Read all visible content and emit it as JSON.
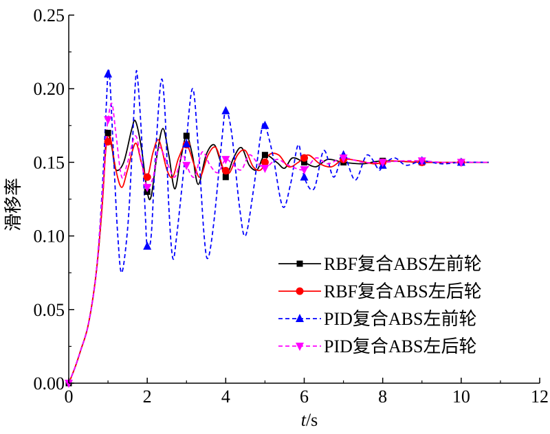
{
  "chart_data": {
    "type": "line",
    "xlabel": {
      "italic": "t",
      "rest": "/s"
    },
    "ylabel": "滑移率",
    "xlim": [
      0,
      12
    ],
    "ylim": [
      0,
      0.25
    ],
    "x_ticks": [
      "0",
      "2",
      "4",
      "6",
      "8",
      "10",
      "12"
    ],
    "y_ticks": [
      "0.00",
      "0.05",
      "0.10",
      "0.15",
      "0.20",
      "0.25"
    ],
    "grid": false,
    "legend_position": "bottom-right",
    "series": [
      {
        "name": "RBF复合ABS左前轮",
        "color": "#000000",
        "dash": "solid",
        "marker": "square",
        "marker_x": [
          0,
          1,
          2,
          3,
          4,
          5,
          6,
          7,
          8,
          9,
          10
        ],
        "points": [
          [
            0,
            0
          ],
          [
            0.15,
            0.01
          ],
          [
            0.3,
            0.022
          ],
          [
            0.5,
            0.04
          ],
          [
            0.7,
            0.075
          ],
          [
            0.85,
            0.12
          ],
          [
            0.95,
            0.165
          ],
          [
            1.0,
            0.17
          ],
          [
            1.1,
            0.16
          ],
          [
            1.2,
            0.145
          ],
          [
            1.4,
            0.15
          ],
          [
            1.6,
            0.172
          ],
          [
            1.7,
            0.178
          ],
          [
            1.85,
            0.16
          ],
          [
            2.0,
            0.13
          ],
          [
            2.1,
            0.127
          ],
          [
            2.25,
            0.155
          ],
          [
            2.4,
            0.173
          ],
          [
            2.55,
            0.155
          ],
          [
            2.7,
            0.132
          ],
          [
            2.85,
            0.152
          ],
          [
            3.0,
            0.168
          ],
          [
            3.15,
            0.155
          ],
          [
            3.3,
            0.135
          ],
          [
            3.5,
            0.155
          ],
          [
            3.7,
            0.162
          ],
          [
            3.85,
            0.152
          ],
          [
            4.0,
            0.14
          ],
          [
            4.2,
            0.153
          ],
          [
            4.4,
            0.16
          ],
          [
            4.6,
            0.148
          ],
          [
            4.8,
            0.145
          ],
          [
            5.0,
            0.155
          ],
          [
            5.3,
            0.15
          ],
          [
            5.5,
            0.146
          ],
          [
            5.7,
            0.153
          ],
          [
            6.0,
            0.15
          ],
          [
            6.3,
            0.147
          ],
          [
            6.6,
            0.152
          ],
          [
            7.0,
            0.15
          ],
          [
            7.5,
            0.149
          ],
          [
            8.0,
            0.151
          ],
          [
            9.0,
            0.15
          ],
          [
            10.0,
            0.15
          ],
          [
            10.7,
            0.15
          ]
        ]
      },
      {
        "name": "RBF复合ABS左后轮",
        "color": "#ff0000",
        "dash": "solid",
        "marker": "circle",
        "marker_x": [
          1,
          2,
          3,
          4,
          5,
          6,
          7,
          8,
          9,
          10
        ],
        "points": [
          [
            0,
            0
          ],
          [
            0.15,
            0.01
          ],
          [
            0.3,
            0.022
          ],
          [
            0.5,
            0.04
          ],
          [
            0.7,
            0.075
          ],
          [
            0.85,
            0.12
          ],
          [
            0.95,
            0.16
          ],
          [
            1.05,
            0.168
          ],
          [
            1.2,
            0.145
          ],
          [
            1.35,
            0.133
          ],
          [
            1.5,
            0.145
          ],
          [
            1.7,
            0.163
          ],
          [
            1.85,
            0.15
          ],
          [
            2.0,
            0.14
          ],
          [
            2.15,
            0.157
          ],
          [
            2.3,
            0.165
          ],
          [
            2.5,
            0.145
          ],
          [
            2.65,
            0.14
          ],
          [
            2.8,
            0.153
          ],
          [
            3.0,
            0.162
          ],
          [
            3.2,
            0.148
          ],
          [
            3.35,
            0.14
          ],
          [
            3.55,
            0.155
          ],
          [
            3.75,
            0.16
          ],
          [
            3.95,
            0.145
          ],
          [
            4.1,
            0.143
          ],
          [
            4.3,
            0.155
          ],
          [
            4.5,
            0.158
          ],
          [
            4.7,
            0.147
          ],
          [
            4.9,
            0.145
          ],
          [
            5.1,
            0.155
          ],
          [
            5.35,
            0.155
          ],
          [
            5.6,
            0.147
          ],
          [
            5.85,
            0.15
          ],
          [
            6.1,
            0.155
          ],
          [
            6.4,
            0.149
          ],
          [
            6.7,
            0.147
          ],
          [
            7.0,
            0.152
          ],
          [
            7.4,
            0.151
          ],
          [
            7.8,
            0.149
          ],
          [
            8.2,
            0.151
          ],
          [
            9.0,
            0.15
          ],
          [
            10.0,
            0.15
          ],
          [
            10.7,
            0.15
          ]
        ]
      },
      {
        "name": "PID复合ABS左前轮",
        "color": "#0000ff",
        "dash": "dashed",
        "marker": "triangle-up",
        "marker_x": [
          1,
          2,
          3,
          4,
          5,
          6,
          7,
          8,
          9,
          10
        ],
        "points": [
          [
            0,
            0
          ],
          [
            0.15,
            0.01
          ],
          [
            0.3,
            0.022
          ],
          [
            0.5,
            0.04
          ],
          [
            0.7,
            0.075
          ],
          [
            0.85,
            0.13
          ],
          [
            0.95,
            0.185
          ],
          [
            1.0,
            0.21
          ],
          [
            1.05,
            0.205
          ],
          [
            1.15,
            0.15
          ],
          [
            1.25,
            0.1
          ],
          [
            1.35,
            0.075
          ],
          [
            1.5,
            0.105
          ],
          [
            1.6,
            0.15
          ],
          [
            1.7,
            0.205
          ],
          [
            1.75,
            0.208
          ],
          [
            1.85,
            0.17
          ],
          [
            1.95,
            0.115
          ],
          [
            2.0,
            0.093
          ],
          [
            2.1,
            0.1
          ],
          [
            2.2,
            0.15
          ],
          [
            2.35,
            0.205
          ],
          [
            2.45,
            0.185
          ],
          [
            2.55,
            0.12
          ],
          [
            2.65,
            0.085
          ],
          [
            2.75,
            0.1
          ],
          [
            2.95,
            0.15
          ],
          [
            3.15,
            0.2
          ],
          [
            3.3,
            0.16
          ],
          [
            3.45,
            0.1
          ],
          [
            3.55,
            0.085
          ],
          [
            3.7,
            0.11
          ],
          [
            3.9,
            0.165
          ],
          [
            4.0,
            0.185
          ],
          [
            4.15,
            0.17
          ],
          [
            4.35,
            0.12
          ],
          [
            4.5,
            0.1
          ],
          [
            4.7,
            0.13
          ],
          [
            4.9,
            0.17
          ],
          [
            5.0,
            0.175
          ],
          [
            5.2,
            0.155
          ],
          [
            5.45,
            0.12
          ],
          [
            5.65,
            0.135
          ],
          [
            5.85,
            0.162
          ],
          [
            6.0,
            0.14
          ],
          [
            6.25,
            0.132
          ],
          [
            6.5,
            0.158
          ],
          [
            6.75,
            0.14
          ],
          [
            7.0,
            0.155
          ],
          [
            7.3,
            0.138
          ],
          [
            7.6,
            0.155
          ],
          [
            7.9,
            0.145
          ],
          [
            8.0,
            0.148
          ],
          [
            8.3,
            0.153
          ],
          [
            8.6,
            0.148
          ],
          [
            9.0,
            0.151
          ],
          [
            9.5,
            0.149
          ],
          [
            10.0,
            0.15
          ],
          [
            10.7,
            0.15
          ]
        ]
      },
      {
        "name": "PID复合ABS左后轮",
        "color": "#ff00ff",
        "dash": "dashed",
        "marker": "triangle-down",
        "marker_x": [
          0,
          1,
          2,
          3,
          4,
          5,
          6,
          7,
          8,
          9,
          10
        ],
        "points": [
          [
            0,
            0
          ],
          [
            0.15,
            0.01
          ],
          [
            0.3,
            0.022
          ],
          [
            0.5,
            0.04
          ],
          [
            0.7,
            0.075
          ],
          [
            0.85,
            0.125
          ],
          [
            0.95,
            0.165
          ],
          [
            1.0,
            0.179
          ],
          [
            1.1,
            0.19
          ],
          [
            1.2,
            0.17
          ],
          [
            1.35,
            0.14
          ],
          [
            1.5,
            0.15
          ],
          [
            1.7,
            0.168
          ],
          [
            1.85,
            0.15
          ],
          [
            2.0,
            0.133
          ],
          [
            2.15,
            0.14
          ],
          [
            2.3,
            0.16
          ],
          [
            2.5,
            0.15
          ],
          [
            2.7,
            0.14
          ],
          [
            2.9,
            0.155
          ],
          [
            3.0,
            0.148
          ],
          [
            3.2,
            0.14
          ],
          [
            3.4,
            0.157
          ],
          [
            3.6,
            0.148
          ],
          [
            3.8,
            0.143
          ],
          [
            4.0,
            0.152
          ],
          [
            4.2,
            0.148
          ],
          [
            4.4,
            0.145
          ],
          [
            4.6,
            0.155
          ],
          [
            4.8,
            0.15
          ],
          [
            5.0,
            0.146
          ],
          [
            5.3,
            0.152
          ],
          [
            5.6,
            0.148
          ],
          [
            6.0,
            0.145
          ],
          [
            6.3,
            0.153
          ],
          [
            6.6,
            0.149
          ],
          [
            7.0,
            0.153
          ],
          [
            7.5,
            0.15
          ],
          [
            8.0,
            0.15
          ],
          [
            8.5,
            0.151
          ],
          [
            9.0,
            0.151
          ],
          [
            9.5,
            0.15
          ],
          [
            10.0,
            0.15
          ],
          [
            10.7,
            0.15
          ]
        ]
      }
    ]
  }
}
